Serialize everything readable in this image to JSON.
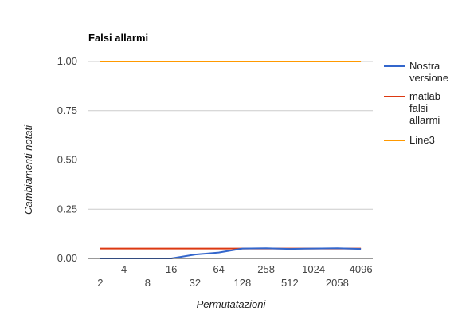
{
  "chart_data": {
    "type": "line",
    "title": "Falsi allarmi",
    "xlabel": "Permutatazioni",
    "ylabel": "Cambiamenti notati",
    "categories": [
      "2",
      "4",
      "8",
      "16",
      "32",
      "64",
      "128",
      "258",
      "512",
      "1024",
      "2058",
      "4096"
    ],
    "ylim": [
      0,
      1
    ],
    "yticks": [
      "0.00",
      "0.25",
      "0.50",
      "0.75",
      "1.00"
    ],
    "grid": true,
    "legend_position": "right",
    "series": [
      {
        "name": "Nostra versione",
        "color": "#3366cc",
        "values": [
          0.0,
          0.0,
          0.0,
          0.0,
          0.02,
          0.03,
          0.05,
          0.052,
          0.048,
          0.05,
          0.052,
          0.048
        ]
      },
      {
        "name": "matlab falsi allarmi",
        "color": "#dc3912",
        "values": [
          0.05,
          0.05,
          0.05,
          0.05,
          0.05,
          0.05,
          0.05,
          0.05,
          0.05,
          0.05,
          0.05,
          0.05
        ]
      },
      {
        "name": "Line3",
        "color": "#ff9900",
        "values": [
          1,
          1,
          1,
          1,
          1,
          1,
          1,
          1,
          1,
          1,
          1,
          1
        ]
      }
    ]
  }
}
